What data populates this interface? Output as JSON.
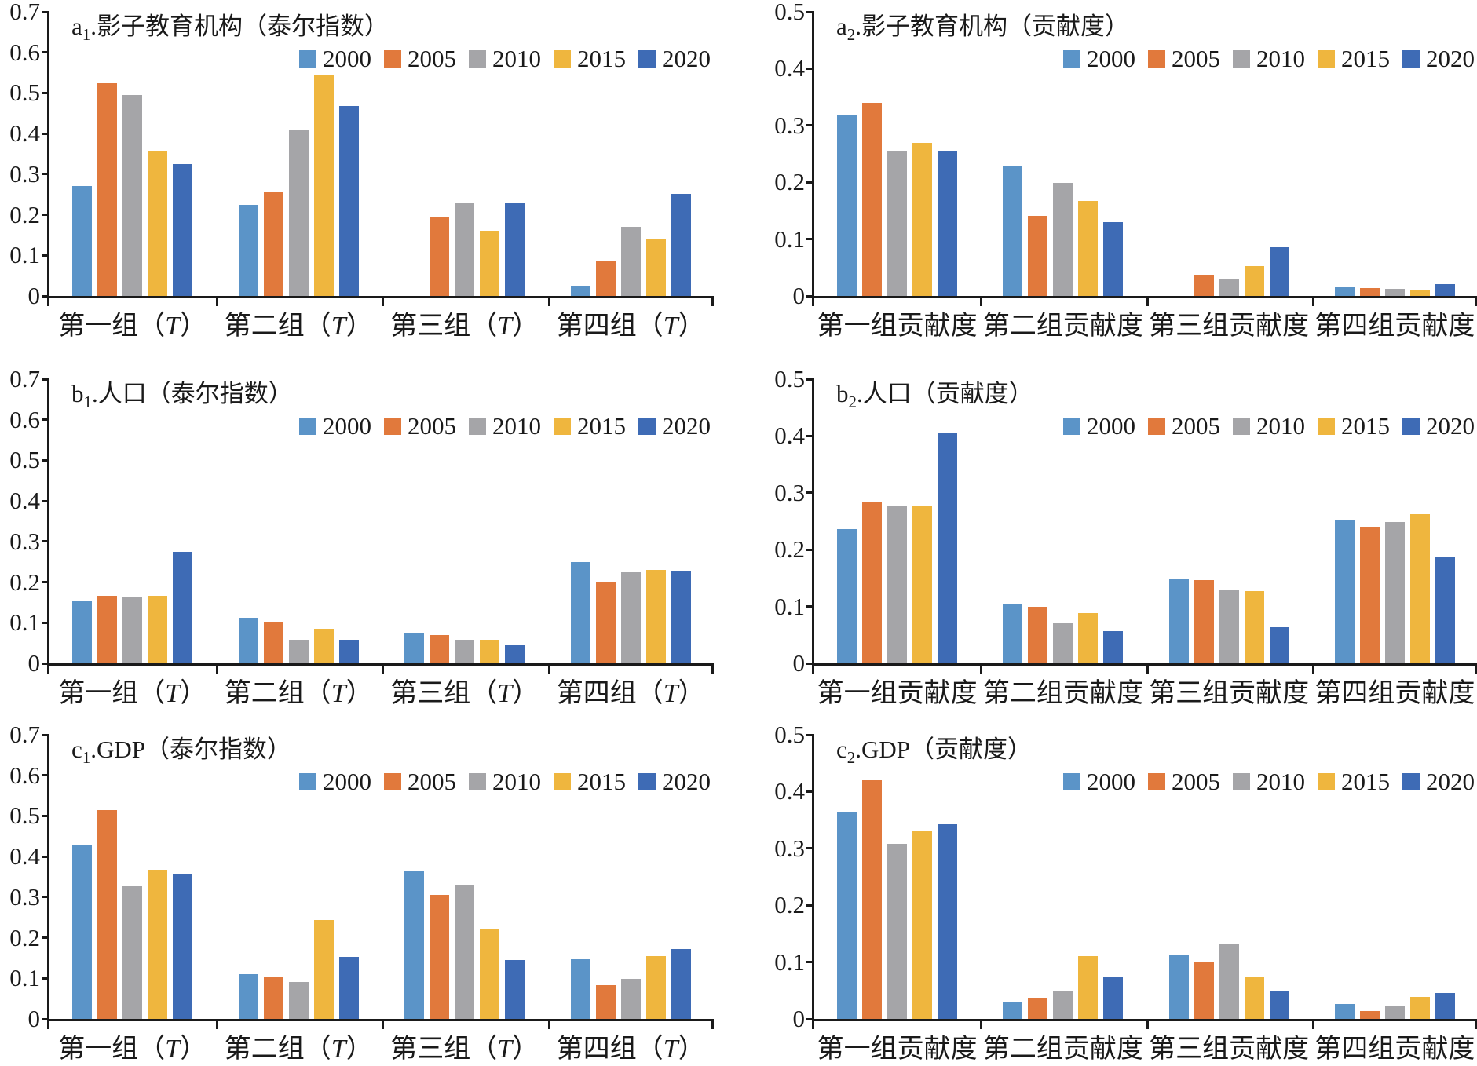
{
  "colors": {
    "series": [
      "#5B94C8",
      "#E1793C",
      "#A5A5A8",
      "#EFB63E",
      "#3E6BB5"
    ],
    "axis": "#1a1a1a",
    "background": "#ffffff"
  },
  "legend_years": [
    "2000",
    "2005",
    "2010",
    "2015",
    "2020"
  ],
  "chart_data": [
    {
      "id": "a1",
      "type": "bar",
      "title_prefix": "a",
      "title_sub": "1",
      "title_rest": ".影子教育机构（泰尔指数）",
      "ylim": [
        0,
        0.7
      ],
      "yticks": [
        "0",
        "0.1",
        "0.2",
        "0.3",
        "0.4",
        "0.5",
        "0.6",
        "0.7"
      ],
      "grid": false,
      "legend_position": "top-right",
      "categories": [
        "第一组（T）",
        "第二组（T）",
        "第三组（T）",
        "第四组（T）"
      ],
      "series": [
        {
          "name": "2000",
          "values": [
            0.27,
            0.224,
            0,
            0.025
          ]
        },
        {
          "name": "2005",
          "values": [
            0.525,
            0.258,
            0.196,
            0.088
          ]
        },
        {
          "name": "2010",
          "values": [
            0.495,
            0.41,
            0.23,
            0.171
          ]
        },
        {
          "name": "2015",
          "values": [
            0.358,
            0.545,
            0.161,
            0.14
          ]
        },
        {
          "name": "2020",
          "values": [
            0.325,
            0.468,
            0.229,
            0.252
          ]
        }
      ]
    },
    {
      "id": "a2",
      "type": "bar",
      "title_prefix": "a",
      "title_sub": "2",
      "title_rest": ".影子教育机构（贡献度）",
      "ylim": [
        0,
        0.5
      ],
      "yticks": [
        "0",
        "0.1",
        "0.2",
        "0.3",
        "0.4",
        "0.5"
      ],
      "grid": false,
      "legend_position": "top-right",
      "categories": [
        "第一组贡献度",
        "第二组贡献度",
        "第三组贡献度",
        "第四组贡献度"
      ],
      "series": [
        {
          "name": "2000",
          "values": [
            0.318,
            0.228,
            0,
            0.016
          ]
        },
        {
          "name": "2005",
          "values": [
            0.34,
            0.141,
            0.038,
            0.014
          ]
        },
        {
          "name": "2010",
          "values": [
            0.256,
            0.199,
            0.03,
            0.013
          ]
        },
        {
          "name": "2015",
          "values": [
            0.27,
            0.167,
            0.053,
            0.01
          ]
        },
        {
          "name": "2020",
          "values": [
            0.255,
            0.13,
            0.085,
            0.021
          ]
        }
      ]
    },
    {
      "id": "b1",
      "type": "bar",
      "title_prefix": "b",
      "title_sub": "1",
      "title_rest": ".人口（泰尔指数）",
      "ylim": [
        0,
        0.7
      ],
      "yticks": [
        "0",
        "0.1",
        "0.2",
        "0.3",
        "0.4",
        "0.5",
        "0.6",
        "0.7"
      ],
      "grid": false,
      "legend_position": "top-right",
      "categories": [
        "第一组（T）",
        "第二组（T）",
        "第三组（T）",
        "第四组（T）"
      ],
      "series": [
        {
          "name": "2000",
          "values": [
            0.154,
            0.113,
            0.073,
            0.25
          ]
        },
        {
          "name": "2005",
          "values": [
            0.167,
            0.102,
            0.07,
            0.201
          ]
        },
        {
          "name": "2010",
          "values": [
            0.163,
            0.058,
            0.058,
            0.224
          ]
        },
        {
          "name": "2015",
          "values": [
            0.167,
            0.085,
            0.058,
            0.23
          ]
        },
        {
          "name": "2020",
          "values": [
            0.275,
            0.058,
            0.044,
            0.229
          ]
        }
      ]
    },
    {
      "id": "b2",
      "type": "bar",
      "title_prefix": "b",
      "title_sub": "2",
      "title_rest": ".人口（贡献度）",
      "ylim": [
        0,
        0.5
      ],
      "yticks": [
        "0",
        "0.1",
        "0.2",
        "0.3",
        "0.4",
        "0.5"
      ],
      "grid": false,
      "legend_position": "top-right",
      "categories": [
        "第一组贡献度",
        "第二组贡献度",
        "第三组贡献度",
        "第四组贡献度"
      ],
      "series": [
        {
          "name": "2000",
          "values": [
            0.236,
            0.103,
            0.148,
            0.251
          ]
        },
        {
          "name": "2005",
          "values": [
            0.284,
            0.099,
            0.147,
            0.24
          ]
        },
        {
          "name": "2010",
          "values": [
            0.277,
            0.07,
            0.128,
            0.249
          ]
        },
        {
          "name": "2015",
          "values": [
            0.278,
            0.088,
            0.127,
            0.262
          ]
        },
        {
          "name": "2020",
          "values": [
            0.405,
            0.056,
            0.063,
            0.188
          ]
        }
      ]
    },
    {
      "id": "c1",
      "type": "bar",
      "title_prefix": "c",
      "title_sub": "1",
      "title_rest": ".GDP（泰尔指数）",
      "ylim": [
        0,
        0.7
      ],
      "yticks": [
        "0",
        "0.1",
        "0.2",
        "0.3",
        "0.4",
        "0.5",
        "0.6",
        "0.7"
      ],
      "grid": false,
      "legend_position": "top-right",
      "categories": [
        "第一组（T）",
        "第二组（T）",
        "第三组（T）",
        "第四组（T）"
      ],
      "series": [
        {
          "name": "2000",
          "values": [
            0.428,
            0.111,
            0.365,
            0.147
          ]
        },
        {
          "name": "2005",
          "values": [
            0.515,
            0.104,
            0.305,
            0.083
          ]
        },
        {
          "name": "2010",
          "values": [
            0.327,
            0.091,
            0.33,
            0.098
          ]
        },
        {
          "name": "2015",
          "values": [
            0.368,
            0.243,
            0.223,
            0.154
          ]
        },
        {
          "name": "2020",
          "values": [
            0.358,
            0.152,
            0.145,
            0.173
          ]
        }
      ]
    },
    {
      "id": "c2",
      "type": "bar",
      "title_prefix": "c",
      "title_sub": "2",
      "title_rest": ".GDP（贡献度）",
      "ylim": [
        0,
        0.5
      ],
      "yticks": [
        "0",
        "0.1",
        "0.2",
        "0.3",
        "0.4",
        "0.5"
      ],
      "grid": false,
      "legend_position": "top-right",
      "categories": [
        "第一组贡献度",
        "第二组贡献度",
        "第三组贡献度",
        "第四组贡献度"
      ],
      "series": [
        {
          "name": "2000",
          "values": [
            0.364,
            0.031,
            0.112,
            0.026
          ]
        },
        {
          "name": "2005",
          "values": [
            0.42,
            0.037,
            0.101,
            0.014
          ]
        },
        {
          "name": "2010",
          "values": [
            0.308,
            0.049,
            0.132,
            0.023
          ]
        },
        {
          "name": "2015",
          "values": [
            0.331,
            0.111,
            0.073,
            0.039
          ]
        },
        {
          "name": "2020",
          "values": [
            0.342,
            0.075,
            0.05,
            0.045
          ]
        }
      ]
    }
  ]
}
